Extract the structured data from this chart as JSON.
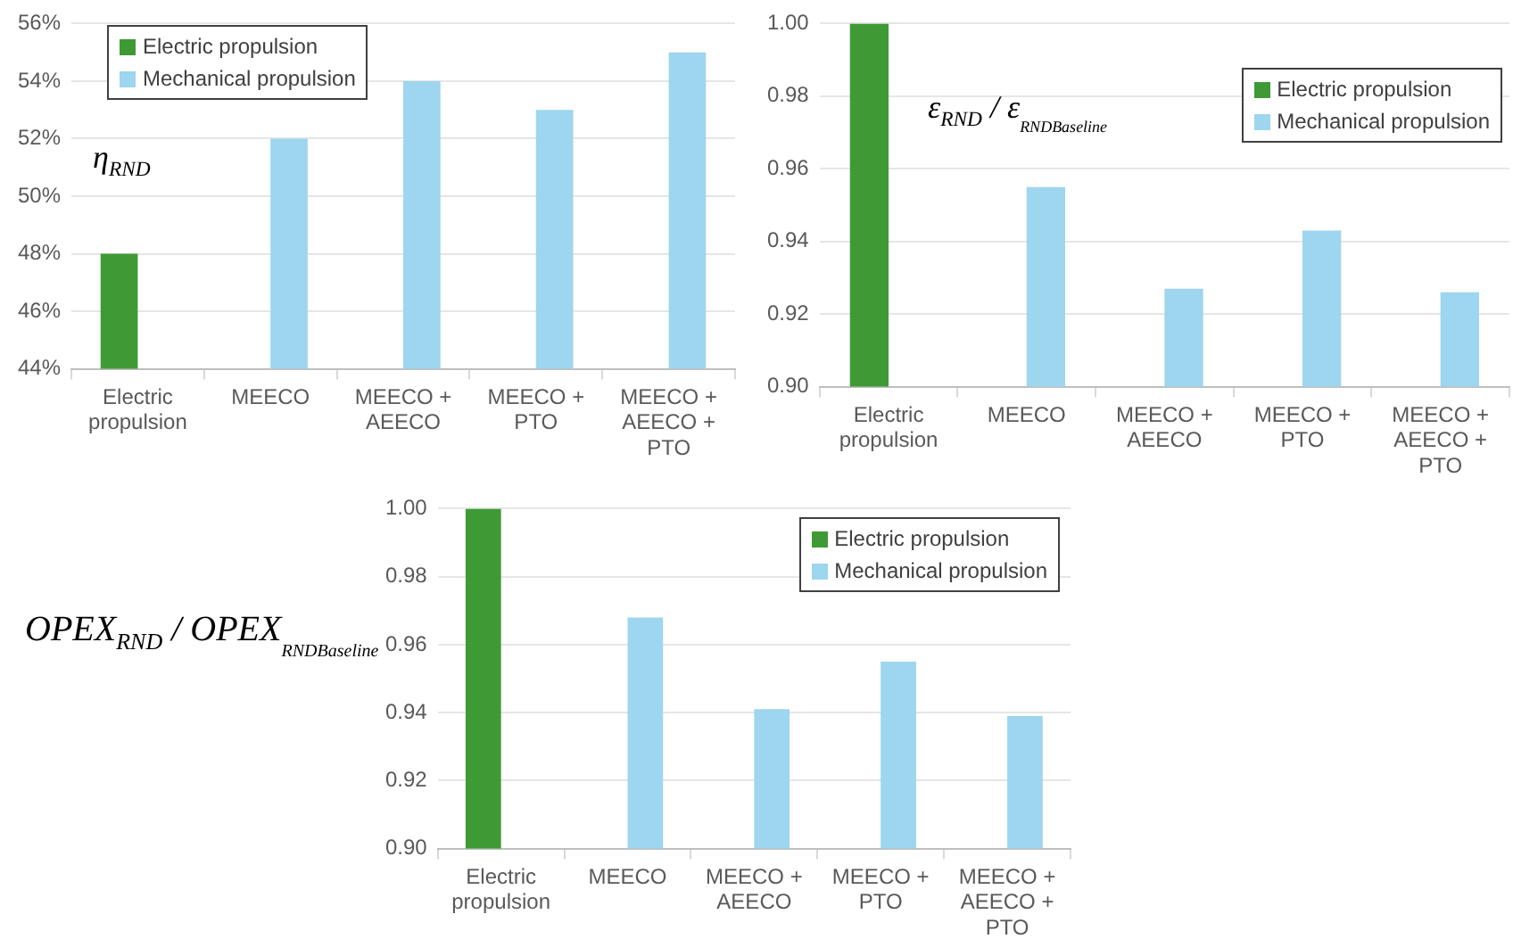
{
  "chart_data": [
    {
      "type": "bar",
      "ylabel": "η$_{RND}$",
      "categories": [
        "Electric propulsion",
        "MEECO",
        "MEECO + AEECO",
        "MEECO + PTO",
        "MEECO + AEECO + PTO"
      ],
      "series": [
        {
          "name": "Electric propulsion",
          "color": "#3f9a35",
          "values": [
            48,
            null,
            null,
            null,
            null
          ]
        },
        {
          "name": "Mechanical propulsion",
          "color": "#9dd6ee",
          "values": [
            null,
            52,
            54,
            53,
            55
          ]
        }
      ],
      "ylim": [
        44,
        56
      ],
      "yticks": [
        {
          "value": 44,
          "label": "44%"
        },
        {
          "value": 46,
          "label": "46%"
        },
        {
          "value": 48,
          "label": "48%"
        },
        {
          "value": 50,
          "label": "50%"
        },
        {
          "value": 52,
          "label": "52%"
        },
        {
          "value": 54,
          "label": "54%"
        },
        {
          "value": 56,
          "label": "56%"
        }
      ],
      "grid": "y",
      "legend": "top left"
    },
    {
      "type": "bar",
      "ylabel": "ε$_{RND}$ / ε$_{RND}$$_{Baseline}$",
      "categories": [
        "Electric propulsion",
        "MEECO",
        "MEECO + AEECO",
        "MEECO + PTO",
        "MEECO + AEECO + PTO"
      ],
      "series": [
        {
          "name": "Electric propulsion",
          "color": "#3f9a35",
          "values": [
            1.0,
            null,
            null,
            null,
            null
          ]
        },
        {
          "name": "Mechanical propulsion",
          "color": "#9dd6ee",
          "values": [
            null,
            0.955,
            0.927,
            0.943,
            0.926
          ]
        }
      ],
      "ylim": [
        0.9,
        1.0
      ],
      "yticks": [
        {
          "value": 0.9,
          "label": "0.90"
        },
        {
          "value": 0.92,
          "label": "0.92"
        },
        {
          "value": 0.94,
          "label": "0.94"
        },
        {
          "value": 0.96,
          "label": "0.96"
        },
        {
          "value": 0.98,
          "label": "0.98"
        },
        {
          "value": 1.0,
          "label": "1.00"
        }
      ],
      "grid": "y",
      "legend": "top right"
    },
    {
      "type": "bar",
      "ylabel": "OPEX$_{RND}$ / OPEX$_{RND}$$_{Baseline}$",
      "categories": [
        "Electric propulsion",
        "MEECO",
        "MEECO + AEECO",
        "MEECO + PTO",
        "MEECO + AEECO + PTO"
      ],
      "series": [
        {
          "name": "Electric propulsion",
          "color": "#3f9a35",
          "values": [
            1.0,
            null,
            null,
            null,
            null
          ]
        },
        {
          "name": "Mechanical propulsion",
          "color": "#9dd6ee",
          "values": [
            null,
            0.968,
            0.941,
            0.955,
            0.939
          ]
        }
      ],
      "ylim": [
        0.9,
        1.0
      ],
      "yticks": [
        {
          "value": 0.9,
          "label": "0.90"
        },
        {
          "value": 0.92,
          "label": "0.92"
        },
        {
          "value": 0.94,
          "label": "0.94"
        },
        {
          "value": 0.96,
          "label": "0.96"
        },
        {
          "value": 0.98,
          "label": "0.98"
        },
        {
          "value": 1.0,
          "label": "1.00"
        }
      ],
      "grid": "y",
      "legend": "top right"
    }
  ]
}
